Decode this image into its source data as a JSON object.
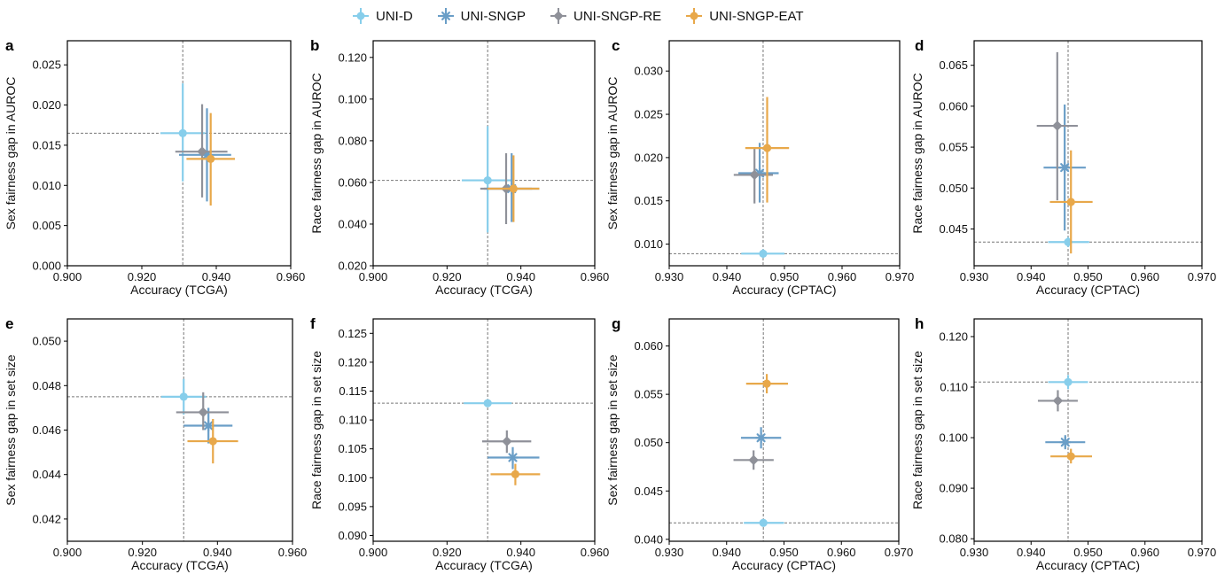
{
  "legend": [
    {
      "name": "UNI-D",
      "color": "#87ceeb",
      "marker": "circle"
    },
    {
      "name": "UNI-SNGP",
      "color": "#6a9ec7",
      "marker": "star"
    },
    {
      "name": "UNI-SNGP-RE",
      "color": "#8f9199",
      "marker": "diamond"
    },
    {
      "name": "UNI-SNGP-EAT",
      "color": "#e8a84a",
      "marker": "circle"
    }
  ],
  "chart_data": [
    {
      "panel": "a",
      "type": "scatter",
      "xlabel": "Accuracy (TCGA)",
      "ylabel": "Sex fairness gap in AUROC",
      "xlim": [
        0.9,
        0.96
      ],
      "ylim": [
        0.0,
        0.028
      ],
      "xticks": [
        0.9,
        0.92,
        0.94,
        0.96
      ],
      "xtick_labels": [
        "0.900",
        "0.920",
        "0.940",
        "0.960"
      ],
      "yticks": [
        0.0,
        0.005,
        0.01,
        0.015,
        0.02,
        0.025
      ],
      "ytick_labels": [
        "0.000",
        "0.005",
        "0.010",
        "0.015",
        "0.020",
        "0.025"
      ],
      "ref_x": 0.931,
      "ref_y": 0.0165,
      "series": [
        {
          "name": "UNI-D",
          "x": 0.931,
          "y": 0.0165,
          "xerr": [
            0.925,
            0.937
          ],
          "yerr": [
            0.0105,
            0.0227
          ]
        },
        {
          "name": "UNI-SNGP",
          "x": 0.9375,
          "y": 0.0138,
          "xerr": [
            0.93,
            0.944
          ],
          "yerr": [
            0.008,
            0.0196
          ]
        },
        {
          "name": "UNI-SNGP-RE",
          "x": 0.9362,
          "y": 0.0142,
          "xerr": [
            0.929,
            0.943
          ],
          "yerr": [
            0.0085,
            0.0201
          ]
        },
        {
          "name": "UNI-SNGP-EAT",
          "x": 0.9385,
          "y": 0.0133,
          "xerr": [
            0.932,
            0.945
          ],
          "yerr": [
            0.0075,
            0.019
          ]
        }
      ]
    },
    {
      "panel": "b",
      "type": "scatter",
      "xlabel": "Accuracy (TCGA)",
      "ylabel": "Race fairness gap in AUROC",
      "xlim": [
        0.9,
        0.96
      ],
      "ylim": [
        0.02,
        0.128
      ],
      "xticks": [
        0.9,
        0.92,
        0.94,
        0.96
      ],
      "xtick_labels": [
        "0.900",
        "0.920",
        "0.940",
        "0.960"
      ],
      "yticks": [
        0.02,
        0.04,
        0.06,
        0.08,
        0.1,
        0.12
      ],
      "ytick_labels": [
        "0.020",
        "0.040",
        "0.060",
        "0.080",
        "0.100",
        "0.120"
      ],
      "ref_x": 0.931,
      "ref_y": 0.061,
      "series": [
        {
          "name": "UNI-D",
          "x": 0.931,
          "y": 0.061,
          "xerr": [
            0.924,
            0.938
          ],
          "yerr": [
            0.036,
            0.087
          ]
        },
        {
          "name": "UNI-SNGP",
          "x": 0.9375,
          "y": 0.057,
          "xerr": [
            0.93,
            0.945
          ],
          "yerr": [
            0.041,
            0.074
          ]
        },
        {
          "name": "UNI-SNGP-RE",
          "x": 0.936,
          "y": 0.057,
          "xerr": [
            0.929,
            0.943
          ],
          "yerr": [
            0.04,
            0.074
          ]
        },
        {
          "name": "UNI-SNGP-EAT",
          "x": 0.938,
          "y": 0.057,
          "xerr": [
            0.931,
            0.945
          ],
          "yerr": [
            0.041,
            0.073
          ]
        }
      ]
    },
    {
      "panel": "c",
      "type": "scatter",
      "xlabel": "Accuracy (CPTAC)",
      "ylabel": "Sex fairness gap in AUROC",
      "xlim": [
        0.93,
        0.97
      ],
      "ylim": [
        0.0075,
        0.0335
      ],
      "xticks": [
        0.93,
        0.94,
        0.95,
        0.96,
        0.97
      ],
      "xtick_labels": [
        "0.930",
        "0.940",
        "0.950",
        "0.960",
        "0.970"
      ],
      "yticks": [
        0.01,
        0.015,
        0.02,
        0.025,
        0.03
      ],
      "ytick_labels": [
        "0.010",
        "0.015",
        "0.020",
        "0.025",
        "0.030"
      ],
      "ref_x": 0.9463,
      "ref_y": 0.0089,
      "series": [
        {
          "name": "UNI-D",
          "x": 0.9463,
          "y": 0.0089,
          "xerr": [
            0.9425,
            0.95
          ],
          "yerr": [
            0.0084,
            0.0094
          ]
        },
        {
          "name": "UNI-SNGP",
          "x": 0.9457,
          "y": 0.0182,
          "xerr": [
            0.942,
            0.949
          ],
          "yerr": [
            0.0148,
            0.0217
          ]
        },
        {
          "name": "UNI-SNGP-RE",
          "x": 0.9448,
          "y": 0.018,
          "xerr": [
            0.9412,
            0.948
          ],
          "yerr": [
            0.0147,
            0.0212
          ]
        },
        {
          "name": "UNI-SNGP-EAT",
          "x": 0.947,
          "y": 0.0211,
          "xerr": [
            0.9432,
            0.9508
          ],
          "yerr": [
            0.0148,
            0.027
          ]
        }
      ]
    },
    {
      "panel": "d",
      "type": "scatter",
      "xlabel": "Accuracy (CPTAC)",
      "ylabel": "Race fairness gap in AUROC",
      "xlim": [
        0.93,
        0.97
      ],
      "ylim": [
        0.0405,
        0.068
      ],
      "xticks": [
        0.93,
        0.94,
        0.95,
        0.96,
        0.97
      ],
      "xtick_labels": [
        "0.930",
        "0.940",
        "0.950",
        "0.960",
        "0.970"
      ],
      "yticks": [
        0.045,
        0.05,
        0.055,
        0.06,
        0.065
      ],
      "ytick_labels": [
        "0.045",
        "0.050",
        "0.055",
        "0.060",
        "0.065"
      ],
      "ref_x": 0.9465,
      "ref_y": 0.0434,
      "series": [
        {
          "name": "UNI-D",
          "x": 0.9465,
          "y": 0.0434,
          "xerr": [
            0.943,
            0.9502
          ],
          "yerr": [
            0.0428,
            0.044
          ]
        },
        {
          "name": "UNI-SNGP",
          "x": 0.9459,
          "y": 0.0525,
          "xerr": [
            0.9422,
            0.9496
          ],
          "yerr": [
            0.0448,
            0.0602
          ]
        },
        {
          "name": "UNI-SNGP-RE",
          "x": 0.9446,
          "y": 0.0576,
          "xerr": [
            0.941,
            0.9482
          ],
          "yerr": [
            0.0485,
            0.0666
          ]
        },
        {
          "name": "UNI-SNGP-EAT",
          "x": 0.947,
          "y": 0.0483,
          "xerr": [
            0.9433,
            0.9508
          ],
          "yerr": [
            0.042,
            0.0546
          ]
        }
      ]
    },
    {
      "panel": "e",
      "type": "scatter",
      "xlabel": "Accuracy (TCGA)",
      "ylabel": "Sex fairness gap in set size",
      "xlim": [
        0.9,
        0.96
      ],
      "ylim": [
        0.041,
        0.051
      ],
      "xticks": [
        0.9,
        0.92,
        0.94,
        0.96
      ],
      "xtick_labels": [
        "0.900",
        "0.920",
        "0.940",
        "0.960"
      ],
      "yticks": [
        0.042,
        0.044,
        0.046,
        0.048,
        0.05
      ],
      "ytick_labels": [
        "0.042",
        "0.044",
        "0.046",
        "0.048",
        "0.050"
      ],
      "ref_x": 0.931,
      "ref_y": 0.0475,
      "series": [
        {
          "name": "UNI-D",
          "x": 0.931,
          "y": 0.0475,
          "xerr": [
            0.925,
            0.937
          ],
          "yerr": [
            0.0467,
            0.0483
          ]
        },
        {
          "name": "UNI-SNGP",
          "x": 0.9376,
          "y": 0.0462,
          "xerr": [
            0.931,
            0.944
          ],
          "yerr": [
            0.0454,
            0.047
          ]
        },
        {
          "name": "UNI-SNGP-RE",
          "x": 0.9362,
          "y": 0.0468,
          "xerr": [
            0.929,
            0.943
          ],
          "yerr": [
            0.046,
            0.0477
          ]
        },
        {
          "name": "UNI-SNGP-EAT",
          "x": 0.9388,
          "y": 0.0455,
          "xerr": [
            0.932,
            0.9455
          ],
          "yerr": [
            0.0445,
            0.0465
          ]
        }
      ]
    },
    {
      "panel": "f",
      "type": "scatter",
      "xlabel": "Accuracy (TCGA)",
      "ylabel": "Race fairness gap in set size",
      "xlim": [
        0.9,
        0.96
      ],
      "ylim": [
        0.089,
        0.1275
      ],
      "xticks": [
        0.9,
        0.92,
        0.94,
        0.96
      ],
      "xtick_labels": [
        "0.900",
        "0.920",
        "0.940",
        "0.960"
      ],
      "yticks": [
        0.09,
        0.095,
        0.1,
        0.105,
        0.11,
        0.115,
        0.12,
        0.125
      ],
      "ytick_labels": [
        "0.090",
        "0.095",
        "0.100",
        "0.105",
        "0.110",
        "0.115",
        "0.120",
        "0.125"
      ],
      "ref_x": 0.931,
      "ref_y": 0.1129,
      "series": [
        {
          "name": "UNI-D",
          "x": 0.931,
          "y": 0.1129,
          "xerr": [
            0.9245,
            0.9375
          ],
          "yerr": [
            0.1123,
            0.1135
          ]
        },
        {
          "name": "UNI-SNGP",
          "x": 0.9378,
          "y": 0.1035,
          "xerr": [
            0.931,
            0.945
          ],
          "yerr": [
            0.1015,
            0.1053
          ]
        },
        {
          "name": "UNI-SNGP-RE",
          "x": 0.9362,
          "y": 0.1063,
          "xerr": [
            0.9295,
            0.9428
          ],
          "yerr": [
            0.1043,
            0.1082
          ]
        },
        {
          "name": "UNI-SNGP-EAT",
          "x": 0.9385,
          "y": 0.1006,
          "xerr": [
            0.9318,
            0.9452
          ],
          "yerr": [
            0.0987,
            0.1024
          ]
        }
      ]
    },
    {
      "panel": "g",
      "type": "scatter",
      "xlabel": "Accuracy (CPTAC)",
      "ylabel": "Sex fairness gap in set size",
      "xlim": [
        0.93,
        0.97
      ],
      "ylim": [
        0.0398,
        0.0628
      ],
      "xticks": [
        0.93,
        0.94,
        0.95,
        0.96,
        0.97
      ],
      "xtick_labels": [
        "0.930",
        "0.940",
        "0.950",
        "0.960",
        "0.970"
      ],
      "yticks": [
        0.04,
        0.045,
        0.05,
        0.055,
        0.06
      ],
      "ytick_labels": [
        "0.040",
        "0.045",
        "0.050",
        "0.055",
        "0.060"
      ],
      "ref_x": 0.9464,
      "ref_y": 0.0417,
      "series": [
        {
          "name": "UNI-D",
          "x": 0.9464,
          "y": 0.0417,
          "xerr": [
            0.943,
            0.95
          ],
          "yerr": [
            0.0413,
            0.042
          ]
        },
        {
          "name": "UNI-SNGP",
          "x": 0.946,
          "y": 0.0505,
          "xerr": [
            0.9425,
            0.9495
          ],
          "yerr": [
            0.0494,
            0.0516
          ]
        },
        {
          "name": "UNI-SNGP-RE",
          "x": 0.9447,
          "y": 0.0482,
          "xerr": [
            0.9412,
            0.9482
          ],
          "yerr": [
            0.0472,
            0.0492
          ]
        },
        {
          "name": "UNI-SNGP-EAT",
          "x": 0.947,
          "y": 0.0561,
          "xerr": [
            0.9434,
            0.9507
          ],
          "yerr": [
            0.0551,
            0.0571
          ]
        }
      ]
    },
    {
      "panel": "h",
      "type": "scatter",
      "xlabel": "Accuracy (CPTAC)",
      "ylabel": "Race fairness gap in set size",
      "xlim": [
        0.93,
        0.97
      ],
      "ylim": [
        0.0795,
        0.1235
      ],
      "xticks": [
        0.93,
        0.94,
        0.95,
        0.96,
        0.97
      ],
      "xtick_labels": [
        "0.930",
        "0.940",
        "0.950",
        "0.960",
        "0.970"
      ],
      "yticks": [
        0.08,
        0.09,
        0.1,
        0.11,
        0.12
      ],
      "ytick_labels": [
        "0.080",
        "0.090",
        "0.100",
        "0.110",
        "0.120"
      ],
      "ref_x": 0.9465,
      "ref_y": 0.111,
      "series": [
        {
          "name": "UNI-D",
          "x": 0.9465,
          "y": 0.111,
          "xerr": [
            0.943,
            0.95
          ],
          "yerr": [
            0.1096,
            0.1124
          ]
        },
        {
          "name": "UNI-SNGP",
          "x": 0.946,
          "y": 0.0991,
          "xerr": [
            0.9425,
            0.9495
          ],
          "yerr": [
            0.0977,
            0.1005
          ]
        },
        {
          "name": "UNI-SNGP-RE",
          "x": 0.9447,
          "y": 0.1073,
          "xerr": [
            0.9412,
            0.9482
          ],
          "yerr": [
            0.1052,
            0.1094
          ]
        },
        {
          "name": "UNI-SNGP-EAT",
          "x": 0.947,
          "y": 0.0963,
          "xerr": [
            0.9434,
            0.9507
          ],
          "yerr": [
            0.0949,
            0.0978
          ]
        }
      ]
    }
  ]
}
